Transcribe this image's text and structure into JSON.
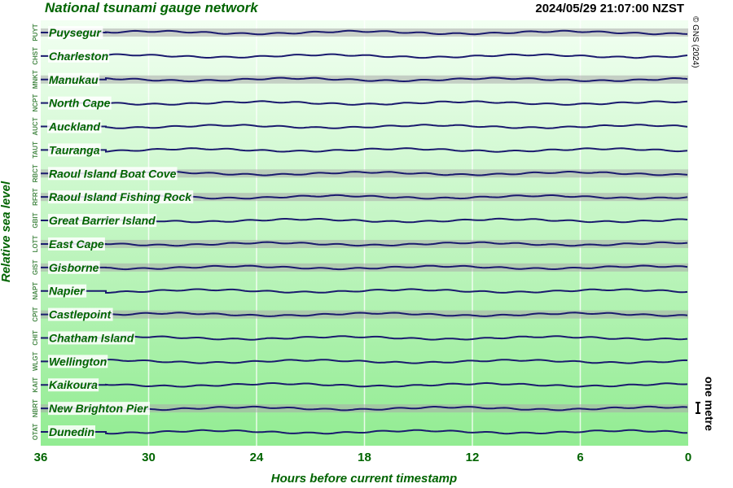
{
  "chart_data": {
    "type": "gauge-stack",
    "title": "National tsunami gauge network",
    "timestamp": "2024/05/29 21:07:00 NZST",
    "copyright": "© GNS (2024)",
    "ylabel": "Relative sea level",
    "xlabel": "Hours before current timestamp",
    "scale_label": "one metre",
    "xlim": [
      36,
      0
    ],
    "xticks": [
      36,
      30,
      24,
      18,
      12,
      6,
      0
    ],
    "stations": [
      {
        "code": "PUYT",
        "name": "Puysegur"
      },
      {
        "code": "CHST",
        "name": "Charleston"
      },
      {
        "code": "MNKT",
        "name": "Manukau"
      },
      {
        "code": "NCPT",
        "name": "North Cape"
      },
      {
        "code": "AUCT",
        "name": "Auckland"
      },
      {
        "code": "TAUT",
        "name": "Tauranga"
      },
      {
        "code": "RBCT",
        "name": "Raoul Island Boat Cove"
      },
      {
        "code": "RFRT",
        "name": "Raoul Island Fishing Rock"
      },
      {
        "code": "GBIT",
        "name": "Great Barrier Island"
      },
      {
        "code": "LOTT",
        "name": "East Cape"
      },
      {
        "code": "GIST",
        "name": "Gisborne"
      },
      {
        "code": "NAPT",
        "name": "Napier"
      },
      {
        "code": "CPIT",
        "name": "Castlepoint"
      },
      {
        "code": "CHIT",
        "name": "Chatham Island"
      },
      {
        "code": "WLGT",
        "name": "Wellington"
      },
      {
        "code": "KAIT",
        "name": "Kaikoura"
      },
      {
        "code": "NBRT",
        "name": "New Brighton Pier"
      },
      {
        "code": "OTAT",
        "name": "Dunedin"
      }
    ]
  }
}
